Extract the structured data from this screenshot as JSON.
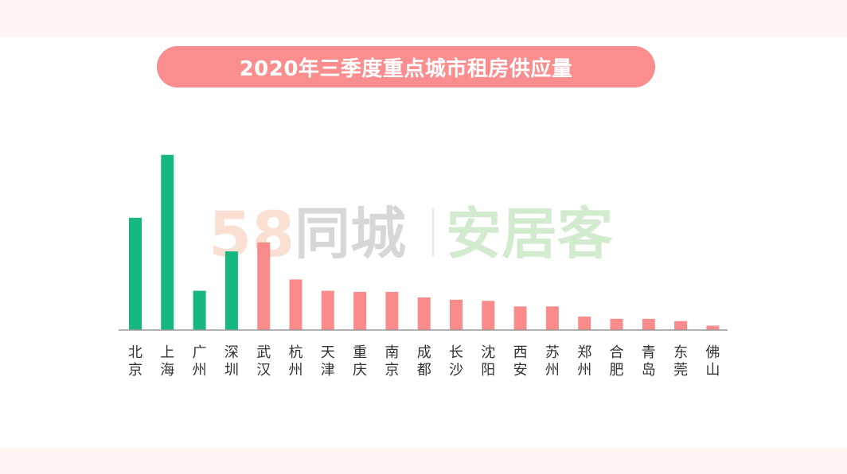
{
  "title": "2020年三季度重点城市租房供应量",
  "watermark": {
    "digits": "58",
    "brand": "同城",
    "product": "安居客"
  },
  "colors": {
    "highlight": "#17b784",
    "normal": "#fa8b8b",
    "axis": "#999999",
    "title_bg": "#fa8d8d",
    "label": "#333333"
  },
  "chart_data": {
    "type": "bar",
    "title": "2020年三季度重点城市租房供应量",
    "xlabel": "",
    "ylabel": "",
    "categories": [
      "北京",
      "上海",
      "广州",
      "深圳",
      "武汉",
      "杭州",
      "天津",
      "重庆",
      "南京",
      "成都",
      "长沙",
      "沈阳",
      "西安",
      "苏州",
      "郑州",
      "合肥",
      "青岛",
      "东莞",
      "佛山"
    ],
    "values": [
      100,
      156,
      35,
      70,
      78,
      45,
      35,
      34,
      34,
      29,
      27,
      26,
      21,
      21,
      12,
      10,
      10,
      8,
      4
    ],
    "highlight_count": 4,
    "ylim": [
      0,
      160
    ],
    "grid": false,
    "legend": "none"
  }
}
